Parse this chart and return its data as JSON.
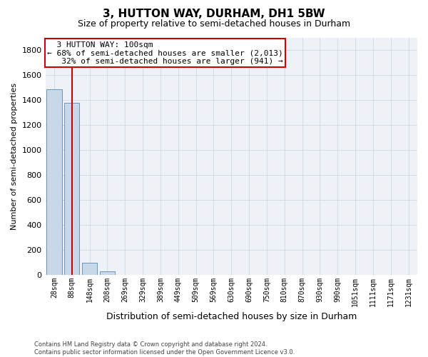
{
  "title": "3, HUTTON WAY, DURHAM, DH1 5BW",
  "subtitle": "Size of property relative to semi-detached houses in Durham",
  "xlabel": "Distribution of semi-detached houses by size in Durham",
  "ylabel": "Number of semi-detached properties",
  "footnote": "Contains HM Land Registry data © Crown copyright and database right 2024.\nContains public sector information licensed under the Open Government Licence v3.0.",
  "property_label": "3 HUTTON WAY: 100sqm",
  "pct_smaller": 68,
  "pct_larger": 32,
  "count_smaller": 2013,
  "count_larger": 941,
  "bar_color": "#c8d8e8",
  "bar_edge_color": "#5a8ab0",
  "annotation_box_color": "#cc0000",
  "vline_color": "#cc0000",
  "categories": [
    "28sqm",
    "88sqm",
    "148sqm",
    "208sqm",
    "269sqm",
    "329sqm",
    "389sqm",
    "449sqm",
    "509sqm",
    "569sqm",
    "630sqm",
    "690sqm",
    "750sqm",
    "810sqm",
    "870sqm",
    "930sqm",
    "990sqm",
    "1051sqm",
    "1111sqm",
    "1171sqm",
    "1231sqm"
  ],
  "values": [
    1487,
    1374,
    98,
    27,
    0,
    0,
    0,
    0,
    0,
    0,
    0,
    0,
    0,
    0,
    0,
    0,
    0,
    0,
    0,
    0,
    0
  ],
  "ylim": [
    0,
    1900
  ],
  "yticks": [
    0,
    200,
    400,
    600,
    800,
    1000,
    1200,
    1400,
    1600,
    1800
  ],
  "property_bin_index": 1,
  "grid_color": "#ccd8e4",
  "bg_color": "#eef2f7",
  "title_fontsize": 11,
  "subtitle_fontsize": 9,
  "annot_fontsize": 8,
  "ylabel_fontsize": 8,
  "xlabel_fontsize": 9,
  "tick_fontsize": 7,
  "footnote_fontsize": 6
}
